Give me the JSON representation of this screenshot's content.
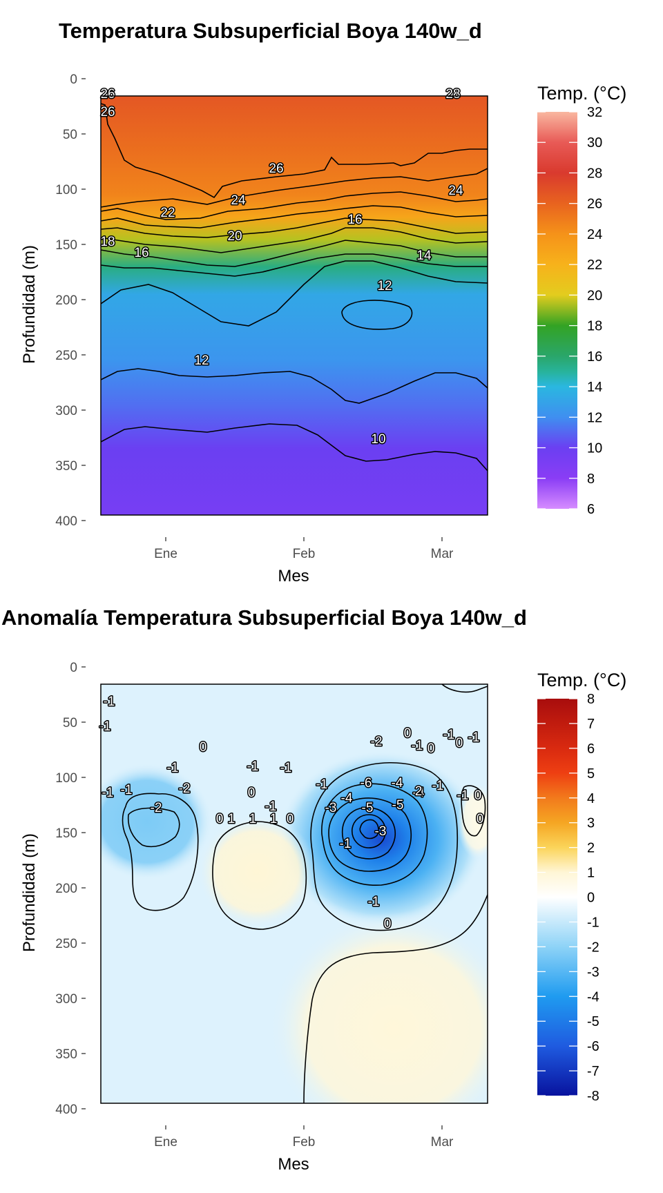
{
  "chart_data": [
    {
      "type": "heatmap",
      "title": "Temperatura Subsuperficial Boya 140w_d",
      "xlabel": "Mes",
      "ylabel": "Profundidad (m)",
      "x_ticks": [
        "Ene",
        "Feb",
        "Mar"
      ],
      "y_ticks": [
        "0",
        "50",
        "100",
        "150",
        "200",
        "250",
        "300",
        "350",
        "400"
      ],
      "ylim": [
        400,
        0
      ],
      "y_data_range": [
        20,
        400
      ],
      "legend": {
        "title": "Temp. (°C)",
        "placement": "right",
        "min": 6,
        "max": 32,
        "ticks": [
          "32",
          "30",
          "28",
          "26",
          "24",
          "22",
          "20",
          "18",
          "16",
          "14",
          "12",
          "10",
          "8",
          "6"
        ],
        "colors": [
          {
            "v": 6,
            "c": "#d68cff"
          },
          {
            "v": 8,
            "c": "#8a3df5"
          },
          {
            "v": 10,
            "c": "#6b3ff2"
          },
          {
            "v": 12,
            "c": "#3f8ff0"
          },
          {
            "v": 14,
            "c": "#2ab7e0"
          },
          {
            "v": 15,
            "c": "#28b39a"
          },
          {
            "v": 16,
            "c": "#2aa66a"
          },
          {
            "v": 18,
            "c": "#33a324"
          },
          {
            "v": 20,
            "c": "#e3cc1e"
          },
          {
            "v": 22,
            "c": "#f7b21b"
          },
          {
            "v": 24,
            "c": "#f59219"
          },
          {
            "v": 26,
            "c": "#e8631f"
          },
          {
            "v": 28,
            "c": "#d93a2e"
          },
          {
            "v": 30,
            "c": "#e85a56"
          },
          {
            "v": 32,
            "c": "#f9b7a0"
          }
        ]
      },
      "profile": [
        {
          "depth": 20,
          "temp": 26.6
        },
        {
          "depth": 70,
          "temp": 25.5
        },
        {
          "depth": 110,
          "temp": 24.6
        },
        {
          "depth": 130,
          "temp": 22.8
        },
        {
          "depth": 150,
          "temp": 19.5
        },
        {
          "depth": 175,
          "temp": 15.5
        },
        {
          "depth": 200,
          "temp": 13.2
        },
        {
          "depth": 260,
          "temp": 12.3
        },
        {
          "depth": 300,
          "temp": 11.2
        },
        {
          "depth": 340,
          "temp": 10.0
        },
        {
          "depth": 400,
          "temp": 9.2
        }
      ],
      "contour_labels": [
        "26",
        "26",
        "28",
        "26",
        "24",
        "24",
        "22",
        "20",
        "18",
        "16",
        "16",
        "14",
        "12",
        "12",
        "10"
      ]
    },
    {
      "type": "heatmap",
      "title": "Anomalía Temperatura Subsuperficial Boya 140w_d",
      "xlabel": "Mes",
      "ylabel": "Profundidad (m)",
      "x_ticks": [
        "Ene",
        "Feb",
        "Mar"
      ],
      "y_ticks": [
        "0",
        "50",
        "100",
        "150",
        "200",
        "250",
        "300",
        "350",
        "400"
      ],
      "ylim": [
        400,
        0
      ],
      "y_data_range": [
        20,
        400
      ],
      "legend": {
        "title": "Temp. (°C)",
        "placement": "right",
        "min": -8,
        "max": 8,
        "ticks": [
          "8",
          "7",
          "6",
          "5",
          "4",
          "3",
          "2",
          "1",
          "0",
          "-1",
          "-2",
          "-3",
          "-4",
          "-5",
          "-6",
          "-7",
          "-8"
        ],
        "colors": [
          {
            "v": -8,
            "c": "#08139e"
          },
          {
            "v": -6,
            "c": "#1f5be0"
          },
          {
            "v": -4,
            "c": "#1f9bf0"
          },
          {
            "v": -2,
            "c": "#8ed3f7"
          },
          {
            "v": 0,
            "c": "#ffffff"
          },
          {
            "v": 1,
            "c": "#fff6d6"
          },
          {
            "v": 2,
            "c": "#fbd45a"
          },
          {
            "v": 3,
            "c": "#f5a623"
          },
          {
            "v": 4,
            "c": "#f27a1c"
          },
          {
            "v": 5,
            "c": "#ee3f12"
          },
          {
            "v": 6,
            "c": "#d92a10"
          },
          {
            "v": 8,
            "c": "#a80d0d"
          }
        ]
      },
      "background_anomaly": -0.6,
      "features": [
        {
          "month": 0.72,
          "depth": 205,
          "value": 1.0
        },
        {
          "month": 2.1,
          "depth": 320,
          "value": 0.9
        },
        {
          "month": 1.45,
          "depth": 130,
          "value": -6.5
        },
        {
          "month": 0.0,
          "depth": 145,
          "value": -2.3
        },
        {
          "month": 2.25,
          "depth": 140,
          "value": 0.6
        }
      ],
      "contour_labels": [
        "-1",
        "-1",
        "-1",
        "-1",
        "-2",
        "-2",
        "-1",
        "0",
        "-1",
        "-1",
        "0",
        "-1",
        "-1",
        "-1",
        "1",
        "1",
        "1",
        "0",
        "0",
        "-2",
        "-4",
        "-6",
        "-5",
        "-3",
        "-4",
        "-5",
        "-3",
        "-4",
        "-1",
        "0",
        "2",
        "-1",
        "0",
        "-1",
        "0",
        "-1",
        "0",
        "-1",
        "0",
        "-1",
        "0"
      ]
    }
  ]
}
